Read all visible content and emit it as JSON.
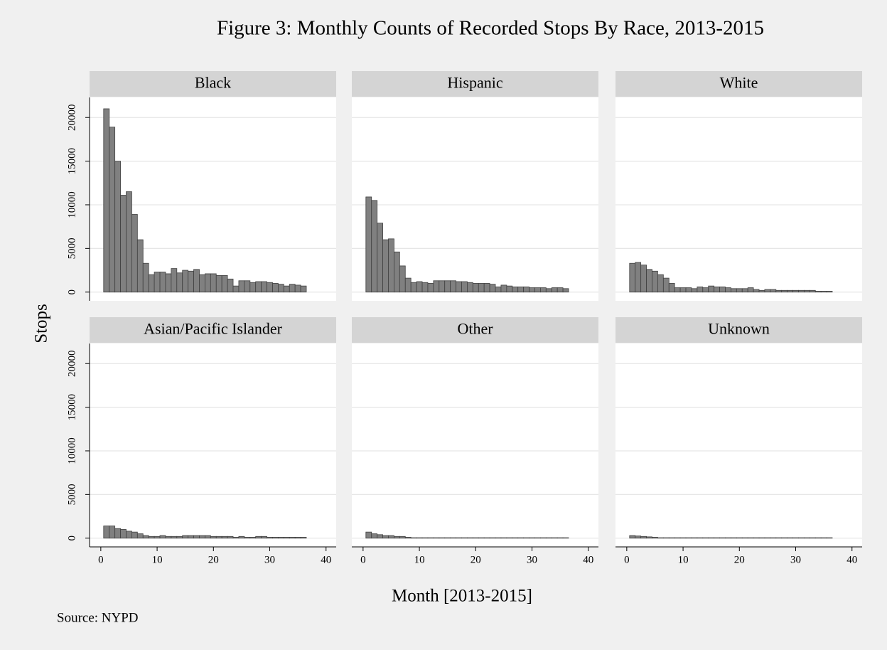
{
  "title": "Figure 3: Monthly Counts of Recorded Stops By Race, 2013-2015",
  "x_label": "Month [2013-2015]",
  "y_label": "Stops",
  "note": "Source: NYPD",
  "chart_data": [
    {
      "type": "bar",
      "title": "Black",
      "color": "#808080",
      "x": [
        1,
        2,
        3,
        4,
        5,
        6,
        7,
        8,
        9,
        10,
        11,
        12,
        13,
        14,
        15,
        16,
        17,
        18,
        19,
        20,
        21,
        22,
        23,
        24,
        25,
        26,
        27,
        28,
        29,
        30,
        31,
        32,
        33,
        34,
        35,
        36
      ],
      "values": [
        21000,
        18900,
        15000,
        11100,
        11500,
        8900,
        6000,
        3300,
        2000,
        2300,
        2300,
        2100,
        2700,
        2200,
        2500,
        2400,
        2600,
        2000,
        2100,
        2100,
        1900,
        1900,
        1500,
        700,
        1300,
        1300,
        1100,
        1200,
        1200,
        1100,
        1000,
        900,
        700,
        900,
        800,
        700
      ],
      "xlim": [
        -2,
        41.8
      ],
      "ylim": [
        -1000,
        22300
      ],
      "yticks": [
        0,
        5000,
        10000,
        15000,
        20000
      ],
      "grid": true
    },
    {
      "type": "bar",
      "title": "Hispanic",
      "color": "#808080",
      "x": [
        1,
        2,
        3,
        4,
        5,
        6,
        7,
        8,
        9,
        10,
        11,
        12,
        13,
        14,
        15,
        16,
        17,
        18,
        19,
        20,
        21,
        22,
        23,
        24,
        25,
        26,
        27,
        28,
        29,
        30,
        31,
        32,
        33,
        34,
        35,
        36
      ],
      "values": [
        10900,
        10500,
        7900,
        6000,
        6100,
        4600,
        3000,
        1600,
        1100,
        1200,
        1100,
        1000,
        1300,
        1300,
        1300,
        1300,
        1200,
        1200,
        1100,
        1000,
        1000,
        1000,
        900,
        600,
        800,
        700,
        600,
        600,
        600,
        500,
        500,
        500,
        400,
        500,
        500,
        400
      ],
      "xlim": [
        -2,
        41.8
      ],
      "ylim": [
        -1000,
        22300
      ],
      "yticks": [
        0,
        5000,
        10000,
        15000,
        20000
      ],
      "grid": true
    },
    {
      "type": "bar",
      "title": "White",
      "color": "#808080",
      "x": [
        1,
        2,
        3,
        4,
        5,
        6,
        7,
        8,
        9,
        10,
        11,
        12,
        13,
        14,
        15,
        16,
        17,
        18,
        19,
        20,
        21,
        22,
        23,
        24,
        25,
        26,
        27,
        28,
        29,
        30,
        31,
        32,
        33,
        34,
        35,
        36
      ],
      "values": [
        3300,
        3400,
        3100,
        2600,
        2400,
        2000,
        1600,
        1000,
        500,
        500,
        500,
        400,
        600,
        500,
        700,
        600,
        600,
        500,
        400,
        400,
        400,
        500,
        300,
        200,
        300,
        300,
        200,
        200,
        200,
        200,
        200,
        200,
        200,
        100,
        100,
        100
      ],
      "xlim": [
        -2,
        41.8
      ],
      "ylim": [
        -1000,
        22300
      ],
      "yticks": [
        0,
        5000,
        10000,
        15000,
        20000
      ],
      "grid": true
    },
    {
      "type": "bar",
      "title": "Asian/Pacific Islander",
      "color": "#808080",
      "x": [
        1,
        2,
        3,
        4,
        5,
        6,
        7,
        8,
        9,
        10,
        11,
        12,
        13,
        14,
        15,
        16,
        17,
        18,
        19,
        20,
        21,
        22,
        23,
        24,
        25,
        26,
        27,
        28,
        29,
        30,
        31,
        32,
        33,
        34,
        35,
        36
      ],
      "values": [
        1400,
        1400,
        1100,
        1000,
        800,
        700,
        500,
        300,
        200,
        200,
        300,
        200,
        200,
        200,
        300,
        300,
        300,
        300,
        300,
        200,
        200,
        200,
        200,
        100,
        200,
        100,
        100,
        200,
        200,
        100,
        100,
        100,
        100,
        100,
        100,
        100
      ],
      "xlim": [
        -2,
        41.8
      ],
      "ylim": [
        -1000,
        22300
      ],
      "xticks": [
        0,
        10,
        20,
        30,
        40
      ],
      "yticks": [
        0,
        5000,
        10000,
        15000,
        20000
      ],
      "grid": true
    },
    {
      "type": "bar",
      "title": "Other",
      "color": "#808080",
      "x": [
        1,
        2,
        3,
        4,
        5,
        6,
        7,
        8,
        9,
        10,
        11,
        12,
        13,
        14,
        15,
        16,
        17,
        18,
        19,
        20,
        21,
        22,
        23,
        24,
        25,
        26,
        27,
        28,
        29,
        30,
        31,
        32,
        33,
        34,
        35,
        36
      ],
      "values": [
        700,
        500,
        400,
        300,
        300,
        200,
        200,
        100,
        50,
        50,
        50,
        50,
        50,
        50,
        50,
        50,
        50,
        50,
        50,
        50,
        50,
        50,
        50,
        50,
        50,
        50,
        50,
        50,
        50,
        50,
        50,
        50,
        50,
        50,
        50,
        50
      ],
      "xlim": [
        -2,
        41.8
      ],
      "ylim": [
        -1000,
        22300
      ],
      "xticks": [
        0,
        10,
        20,
        30,
        40
      ],
      "yticks": [
        0,
        5000,
        10000,
        15000,
        20000
      ],
      "grid": true
    },
    {
      "type": "bar",
      "title": "Unknown",
      "color": "#808080",
      "x": [
        1,
        2,
        3,
        4,
        5,
        6,
        7,
        8,
        9,
        10,
        11,
        12,
        13,
        14,
        15,
        16,
        17,
        18,
        19,
        20,
        21,
        22,
        23,
        24,
        25,
        26,
        27,
        28,
        29,
        30,
        31,
        32,
        33,
        34,
        35,
        36
      ],
      "values": [
        300,
        250,
        200,
        150,
        100,
        50,
        50,
        50,
        50,
        50,
        50,
        50,
        50,
        50,
        50,
        50,
        50,
        50,
        50,
        50,
        50,
        50,
        50,
        50,
        50,
        50,
        50,
        50,
        50,
        50,
        50,
        50,
        50,
        50,
        50,
        50
      ],
      "xlim": [
        -2,
        41.8
      ],
      "ylim": [
        -1000,
        22300
      ],
      "xticks": [
        0,
        10,
        20,
        30,
        40
      ],
      "yticks": [
        0,
        5000,
        10000,
        15000,
        20000
      ],
      "grid": true
    }
  ]
}
